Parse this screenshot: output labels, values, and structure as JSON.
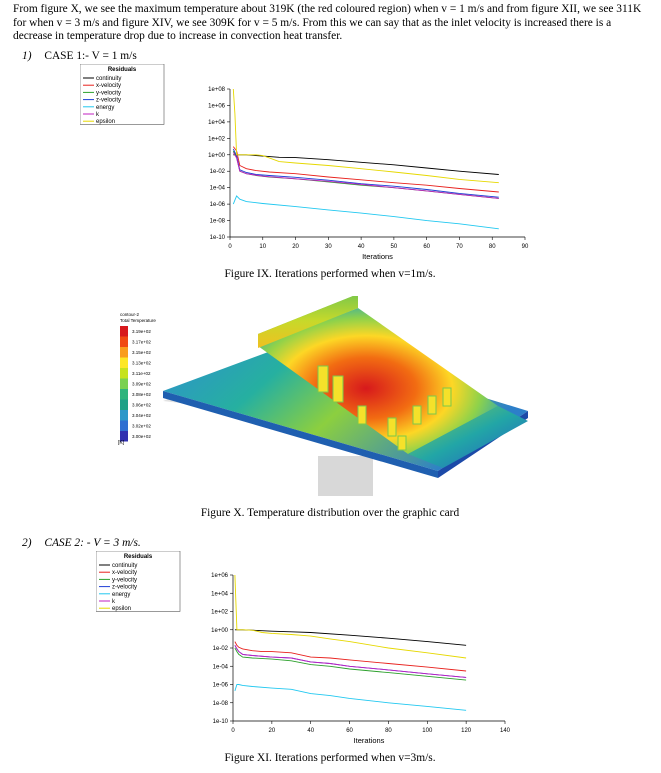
{
  "paragraph": "From figure X, we see the maximum temperature about 319K (the red coloured region) when v = 1 m/s and from figure XII, we see 311K for when v = 3 m/s and figure XIV, we see 309K for v = 5 m/s. From this we can say that as the inlet velocity is increased there is a decrease in temperature drop due to increase in convection heat transfer.",
  "case1": {
    "num": "1)",
    "label": "CASE 1:- V = 1 m/s"
  },
  "case2": {
    "num": "2)",
    "label": "CASE 2: - V = 3 m/s."
  },
  "captions": {
    "fig9": "Figure IX. Iterations performed when v=1m/s.",
    "fig10": "Figure X. Temperature distribution over the graphic card",
    "fig11": "Figure XI. Iterations performed when v=3m/s."
  },
  "contour": {
    "title_line1": "contour-2",
    "title_line2": "Total Temperature",
    "unit": "[K]",
    "levels": [
      "3.19e+02",
      "3.17e+02",
      "3.15e+02",
      "3.13e+02",
      "3.11e+02",
      "3.09e+02",
      "3.08e+02",
      "3.06e+02",
      "3.04e+02",
      "3.02e+02",
      "3.00e+02"
    ],
    "colors": [
      "#d7191c",
      "#f04a12",
      "#f99d1c",
      "#fde725",
      "#c6e21e",
      "#7ad151",
      "#2fb47c",
      "#1fa187",
      "#2c98c9",
      "#2f6fd1",
      "#3030b0"
    ]
  },
  "chart_data": [
    {
      "type": "line",
      "title": "Residuals",
      "xlabel": "Iterations",
      "ylabel": "",
      "xlim": [
        0,
        90
      ],
      "xticks": [
        "0",
        "10",
        "20",
        "30",
        "40",
        "50",
        "60",
        "70",
        "80",
        "90"
      ],
      "yticks": [
        "1e+08",
        "1e+06",
        "1e+04",
        "1e+02",
        "1e+00",
        "1e-02",
        "1e-04",
        "1e-06",
        "1e-08",
        "1e-10"
      ],
      "log_y": true,
      "legend_position": "top-left",
      "series": [
        {
          "name": "continuity",
          "color": "#000000",
          "x": [
            1,
            3,
            5,
            10,
            15,
            20,
            30,
            40,
            50,
            60,
            70,
            82
          ],
          "y": [
            1,
            1,
            1,
            0.7,
            0.5,
            0.45,
            0.25,
            0.12,
            0.06,
            0.025,
            0.01,
            0.004
          ]
        },
        {
          "name": "x-velocity",
          "color": "#e8211d",
          "x": [
            1,
            2,
            3,
            5,
            8,
            12,
            20,
            30,
            40,
            50,
            60,
            70,
            82
          ],
          "y": [
            10,
            3,
            0.05,
            0.02,
            0.012,
            0.008,
            0.005,
            0.002,
            0.0009,
            0.0004,
            0.0002,
            8e-05,
            3e-05
          ]
        },
        {
          "name": "y-velocity",
          "color": "#2ca02c",
          "x": [
            1,
            2,
            3,
            5,
            8,
            12,
            20,
            30,
            40,
            50,
            60,
            70,
            82
          ],
          "y": [
            3,
            0.5,
            0.01,
            0.005,
            0.003,
            0.002,
            0.0012,
            0.0005,
            0.0002,
            0.0001,
            4e-05,
            1.5e-05,
            5e-06
          ]
        },
        {
          "name": "z-velocity",
          "color": "#1f3fd6",
          "x": [
            1,
            2,
            3,
            5,
            8,
            12,
            20,
            30,
            40,
            50,
            60,
            70,
            82
          ],
          "y": [
            5,
            0.8,
            0.015,
            0.007,
            0.004,
            0.003,
            0.0018,
            0.0008,
            0.0003,
            0.00015,
            6e-05,
            2e-05,
            7e-06
          ]
        },
        {
          "name": "energy",
          "color": "#22c8f0",
          "x": [
            1,
            2,
            3,
            5,
            10,
            20,
            30,
            40,
            50,
            60,
            70,
            82
          ],
          "y": [
            1e-06,
            1e-05,
            4e-06,
            2e-06,
            1.2e-06,
            5e-07,
            2e-07,
            8e-08,
            3e-08,
            1e-08,
            4e-09,
            1e-09
          ]
        },
        {
          "name": "k",
          "color": "#c020c0",
          "x": [
            1,
            2,
            3,
            5,
            10,
            20,
            30,
            40,
            50,
            60,
            70,
            82
          ],
          "y": [
            2,
            0.4,
            0.01,
            0.005,
            0.0025,
            0.0012,
            0.0006,
            0.00025,
            0.0001,
            4e-05,
            1.5e-05,
            5e-06
          ]
        },
        {
          "name": "epsilon",
          "color": "#e6d800",
          "x": [
            1,
            1.5,
            2,
            3,
            5,
            8,
            10,
            15,
            20,
            30,
            40,
            50,
            60,
            70,
            82
          ],
          "y": [
            100000000.0,
            100000.0,
            1,
            1,
            1,
            1,
            0.8,
            0.15,
            0.1,
            0.05,
            0.02,
            0.008,
            0.003,
            0.001,
            0.0004
          ]
        }
      ]
    },
    {
      "type": "line",
      "title": "Residuals",
      "xlabel": "Iterations",
      "ylabel": "",
      "xlim": [
        0,
        140
      ],
      "xticks": [
        "0",
        "20",
        "40",
        "60",
        "80",
        "100",
        "120",
        "140"
      ],
      "yticks": [
        "1e+06",
        "1e+04",
        "1e+02",
        "1e+00",
        "1e-02",
        "1e-04",
        "1e-06",
        "1e-08",
        "1e-10"
      ],
      "log_y": true,
      "legend_position": "top-left",
      "series": [
        {
          "name": "continuity",
          "color": "#000000",
          "x": [
            1,
            3,
            5,
            10,
            20,
            30,
            40,
            60,
            80,
            100,
            120
          ],
          "y": [
            1,
            1,
            1,
            0.9,
            0.7,
            0.6,
            0.5,
            0.25,
            0.12,
            0.05,
            0.02
          ]
        },
        {
          "name": "x-velocity",
          "color": "#e8211d",
          "x": [
            1,
            2,
            3,
            5,
            10,
            15,
            20,
            30,
            40,
            50,
            60,
            80,
            100,
            120
          ],
          "y": [
            0.05,
            0.02,
            0.012,
            0.008,
            0.005,
            0.004,
            0.004,
            0.003,
            0.001,
            0.0008,
            0.0005,
            0.0002,
            8e-05,
            3e-05
          ]
        },
        {
          "name": "y-velocity",
          "color": "#2ca02c",
          "x": [
            1,
            2,
            3,
            5,
            10,
            20,
            30,
            40,
            50,
            60,
            80,
            100,
            120
          ],
          "y": [
            0.01,
            0.004,
            0.002,
            0.001,
            0.0008,
            0.0006,
            0.0004,
            0.00015,
            0.0001,
            5e-05,
            2e-05,
            8e-06,
            3e-06
          ]
        },
        {
          "name": "z-velocity",
          "color": "#1f3fd6",
          "x": [
            1,
            2,
            3,
            5,
            10,
            20,
            30,
            40,
            50,
            60,
            80,
            100,
            120
          ],
          "y": [
            0.02,
            0.008,
            0.004,
            0.002,
            0.0015,
            0.001,
            0.0008,
            0.0003,
            0.0002,
            0.0001,
            4e-05,
            1.5e-05,
            6e-06
          ]
        },
        {
          "name": "energy",
          "color": "#22c8f0",
          "x": [
            1,
            2,
            3,
            5,
            10,
            20,
            30,
            40,
            50,
            60,
            80,
            100,
            120
          ],
          "y": [
            2e-07,
            1e-06,
            1e-06,
            8e-07,
            6e-07,
            4e-07,
            3e-07,
            1e-07,
            6e-08,
            3e-08,
            1e-08,
            4e-09,
            1.5e-09
          ]
        },
        {
          "name": "k",
          "color": "#c020c0",
          "x": [
            1,
            2,
            3,
            5,
            10,
            20,
            30,
            40,
            50,
            60,
            80,
            100,
            120
          ],
          "y": [
            0.02,
            0.008,
            0.004,
            0.002,
            0.0015,
            0.001,
            0.0008,
            0.0003,
            0.0002,
            0.0001,
            4e-05,
            1.5e-05,
            6e-06
          ]
        },
        {
          "name": "epsilon",
          "color": "#e6d800",
          "x": [
            1,
            1.5,
            2,
            3,
            5,
            10,
            15,
            20,
            30,
            40,
            50,
            60,
            80,
            100,
            120
          ],
          "y": [
            1000000.0,
            1000.0,
            1,
            1,
            1,
            0.9,
            0.5,
            0.4,
            0.3,
            0.2,
            0.1,
            0.05,
            0.01,
            0.003,
            0.0008
          ]
        }
      ]
    }
  ]
}
